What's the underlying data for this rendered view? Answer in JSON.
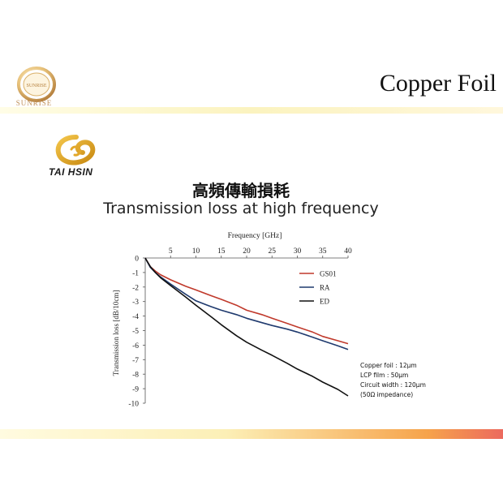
{
  "header": {
    "title": "Copper Foil",
    "brand_name": "SUNRISE",
    "brand_color": "#c0905a"
  },
  "logo2": {
    "name": "TAI HSIN",
    "color": "#e0a020"
  },
  "slide": {
    "title_cn": "高頻傳輸損耗",
    "title_en": "Transmission loss at high frequency"
  },
  "notes": {
    "lines": [
      "Copper foil : 12μm",
      "LCP film : 50μm",
      "Circuit width : 120μm",
      " (50Ω impedance)"
    ]
  },
  "chart_data": {
    "type": "line",
    "xlabel": "Frequency [GHz]",
    "ylabel": "Transmission loss [dB/10cm]",
    "xlim": [
      0,
      40
    ],
    "ylim": [
      -10,
      0
    ],
    "xticks": [
      5,
      10,
      15,
      20,
      25,
      30,
      35,
      40
    ],
    "yticks": [
      0,
      -1,
      -2,
      -3,
      -4,
      -5,
      -6,
      -7,
      -8,
      -9,
      -10
    ],
    "x_axis_position": "top",
    "grid": false,
    "legend_position": "upper-right",
    "x": [
      0,
      1,
      2,
      3,
      5,
      8,
      10,
      13,
      15,
      18,
      20,
      23,
      25,
      28,
      30,
      33,
      35,
      38,
      40
    ],
    "series": [
      {
        "name": "GS01",
        "color": "#c0392b",
        "values": [
          0,
          -0.6,
          -0.9,
          -1.15,
          -1.5,
          -1.95,
          -2.2,
          -2.6,
          -2.85,
          -3.25,
          -3.6,
          -3.9,
          -4.15,
          -4.5,
          -4.75,
          -5.1,
          -5.4,
          -5.7,
          -5.9
        ]
      },
      {
        "name": "RA",
        "color": "#1f3a6e",
        "values": [
          0,
          -0.65,
          -1.0,
          -1.3,
          -1.8,
          -2.5,
          -2.95,
          -3.35,
          -3.6,
          -3.9,
          -4.15,
          -4.45,
          -4.65,
          -4.9,
          -5.1,
          -5.45,
          -5.7,
          -6.05,
          -6.3
        ]
      },
      {
        "name": "ED",
        "color": "#111111",
        "values": [
          0,
          -0.6,
          -1.0,
          -1.35,
          -1.9,
          -2.7,
          -3.25,
          -4.05,
          -4.6,
          -5.35,
          -5.8,
          -6.35,
          -6.7,
          -7.25,
          -7.65,
          -8.15,
          -8.55,
          -9.05,
          -9.5
        ]
      }
    ]
  }
}
